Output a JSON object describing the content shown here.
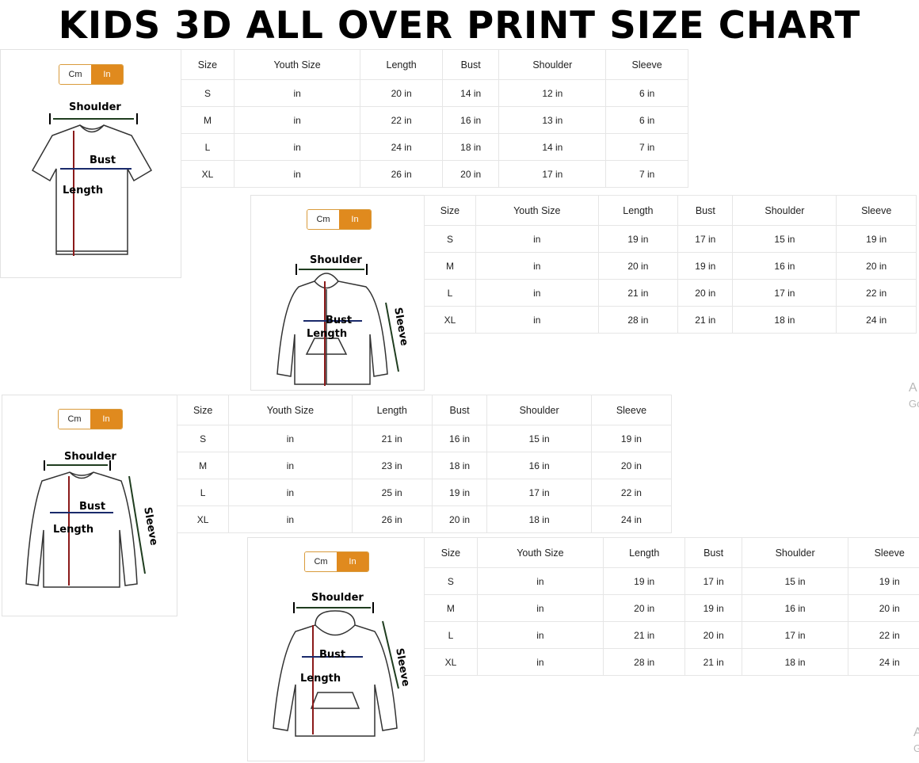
{
  "title": "KIDS 3D ALL OVER PRINT SIZE CHART",
  "unit_toggle": {
    "options": [
      "Cm",
      "In"
    ],
    "selected": "In"
  },
  "colors": {
    "accent": "#e08a1e",
    "length_arrow": "#8b1a1a",
    "bust_arrow": "#1a2a6b",
    "shoulder_arrow": "#1f3d1f"
  },
  "labels": {
    "shoulder": "Shoulder",
    "bust": "Bust",
    "length": "Length",
    "sleeve": "Sleeve"
  },
  "columns": [
    "Size",
    "Youth Size",
    "Length",
    "Bust",
    "Shoulder",
    "Sleeve"
  ],
  "charts": [
    {
      "garment": "t-shirt",
      "rows": [
        [
          "S",
          "in",
          "20 in",
          "14 in",
          "12 in",
          "6 in"
        ],
        [
          "M",
          "in",
          "22 in",
          "16 in",
          "13 in",
          "6 in"
        ],
        [
          "L",
          "in",
          "24 in",
          "18 in",
          "14 in",
          "7 in"
        ],
        [
          "XL",
          "in",
          "26 in",
          "20 in",
          "17 in",
          "7 in"
        ]
      ]
    },
    {
      "garment": "zip-hoodie",
      "rows": [
        [
          "S",
          "in",
          "19 in",
          "17 in",
          "15 in",
          "19 in"
        ],
        [
          "M",
          "in",
          "20 in",
          "19 in",
          "16 in",
          "20 in"
        ],
        [
          "L",
          "in",
          "21 in",
          "20 in",
          "17 in",
          "22 in"
        ],
        [
          "XL",
          "in",
          "28 in",
          "21 in",
          "18 in",
          "24 in"
        ]
      ]
    },
    {
      "garment": "long-sleeve",
      "rows": [
        [
          "S",
          "in",
          "21 in",
          "16 in",
          "15 in",
          "19 in"
        ],
        [
          "M",
          "in",
          "23 in",
          "18 in",
          "16 in",
          "20 in"
        ],
        [
          "L",
          "in",
          "25 in",
          "19 in",
          "17 in",
          "22 in"
        ],
        [
          "XL",
          "in",
          "26 in",
          "20 in",
          "18 in",
          "24 in"
        ]
      ]
    },
    {
      "garment": "pullover-hoodie",
      "rows": [
        [
          "S",
          "in",
          "19 in",
          "17 in",
          "15 in",
          "19 in"
        ],
        [
          "M",
          "in",
          "20 in",
          "19 in",
          "16 in",
          "20 in"
        ],
        [
          "L",
          "in",
          "21 in",
          "20 in",
          "17 in",
          "22 in"
        ],
        [
          "XL",
          "in",
          "28 in",
          "21 in",
          "18 in",
          "24 in"
        ]
      ]
    }
  ],
  "watermarks": [
    {
      "line1": "A",
      "line2": "Go"
    },
    {
      "line1": "A",
      "line2": "G"
    }
  ]
}
